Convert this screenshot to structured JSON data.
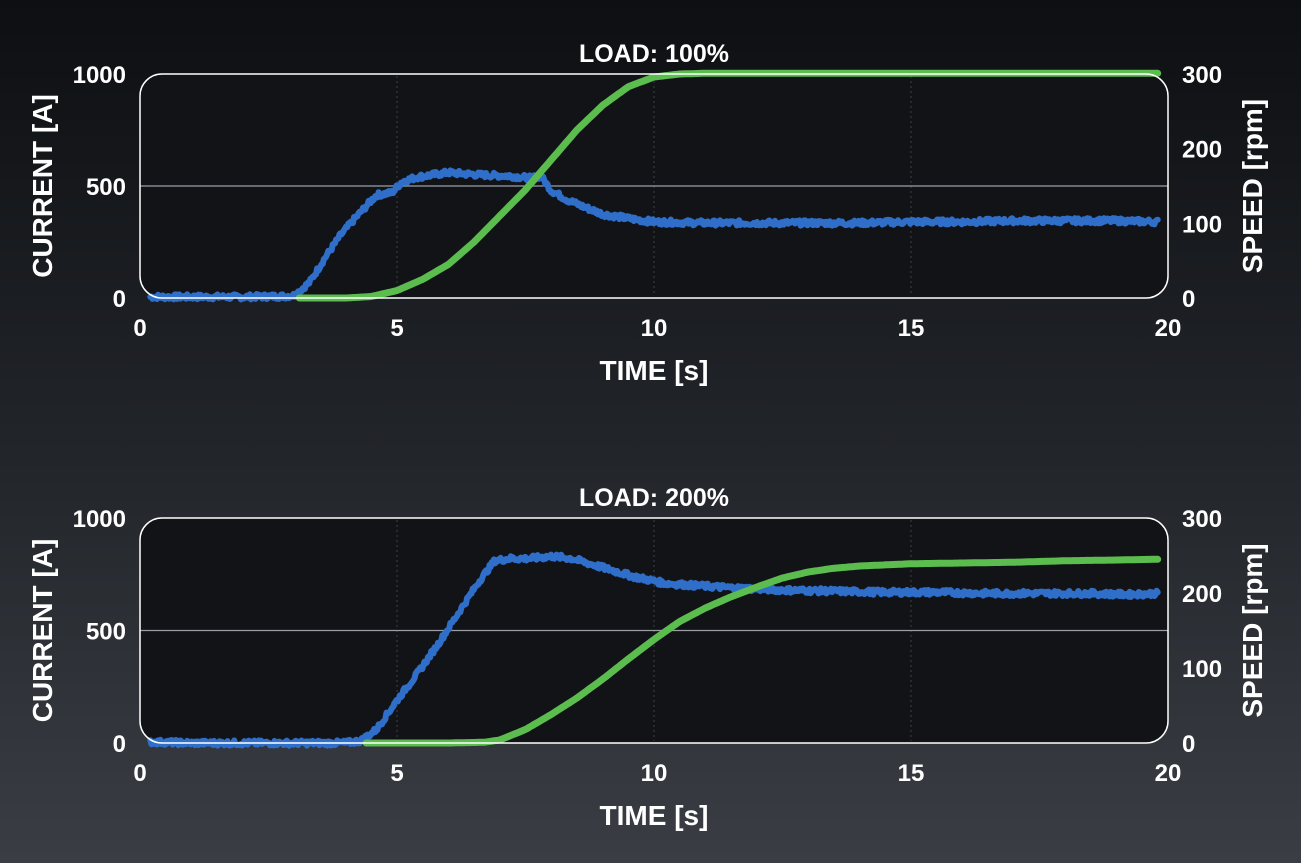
{
  "colors": {
    "current": "#2f6fc9",
    "speed": "#5cbd4f",
    "plot_bg": "#121317",
    "frame": "#ffffff",
    "grid_major": "#9a9ea5",
    "grid_minor": "#3b3f46",
    "text": "#ffffff"
  },
  "chart_data": [
    {
      "type": "line",
      "title": "LOAD: 100%",
      "xlabel": "TIME [s]",
      "ylabel": "CURRENT [A]",
      "y2label": "SPEED [rpm]",
      "xlim": [
        0,
        20
      ],
      "ylim": [
        0,
        1000
      ],
      "y2lim": [
        0,
        300
      ],
      "xticks": [
        "0",
        "5",
        "10",
        "15",
        "20"
      ],
      "yticks": [
        "0",
        "500",
        "1000"
      ],
      "y2ticks": [
        "0",
        "100",
        "200",
        "300"
      ],
      "grid": true,
      "series": [
        {
          "axis": "left",
          "color_key": "current",
          "noise": 12,
          "x": [
            0.2,
            1.0,
            2.0,
            2.8,
            3.0,
            3.3,
            3.6,
            3.9,
            4.2,
            4.6,
            4.9,
            5.1,
            5.4,
            6.0,
            6.6,
            7.2,
            7.6,
            7.8,
            8.0,
            8.3,
            8.6,
            9.0,
            9.5,
            10.0,
            11.0,
            12.0,
            13.0,
            14.0,
            15.0,
            16.0,
            17.0,
            18.0,
            19.0,
            19.8
          ],
          "y": [
            5,
            5,
            5,
            8,
            12,
            70,
            180,
            280,
            360,
            460,
            470,
            520,
            540,
            560,
            550,
            545,
            535,
            545,
            480,
            440,
            410,
            375,
            355,
            340,
            335,
            335,
            335,
            335,
            340,
            340,
            345,
            345,
            345,
            340
          ]
        },
        {
          "axis": "right",
          "color_key": "speed",
          "noise": 0,
          "x": [
            3.1,
            4.0,
            4.5,
            5.0,
            5.5,
            6.0,
            6.5,
            7.0,
            7.5,
            8.0,
            8.5,
            9.0,
            9.5,
            10.0,
            10.5,
            11.0,
            12.0,
            15.0,
            19.8
          ],
          "y": [
            0,
            0,
            2,
            10,
            25,
            45,
            75,
            110,
            145,
            185,
            225,
            258,
            283,
            296,
            300,
            301,
            301,
            301,
            301
          ]
        }
      ]
    },
    {
      "type": "line",
      "title": "LOAD: 200%",
      "xlabel": "TIME [s]",
      "ylabel": "CURRENT [A]",
      "y2label": "SPEED [rpm]",
      "xlim": [
        0,
        20
      ],
      "ylim": [
        0,
        1000
      ],
      "y2lim": [
        0,
        300
      ],
      "xticks": [
        "0",
        "5",
        "10",
        "15",
        "20"
      ],
      "yticks": [
        "0",
        "500",
        "1000"
      ],
      "y2ticks": [
        "0",
        "100",
        "200",
        "300"
      ],
      "grid": true,
      "series": [
        {
          "axis": "left",
          "color_key": "current",
          "noise": 12,
          "x": [
            0.2,
            1.0,
            2.0,
            3.0,
            4.0,
            4.3,
            4.6,
            5.0,
            5.4,
            5.8,
            6.2,
            6.6,
            6.9,
            7.2,
            7.6,
            8.0,
            8.4,
            9.0,
            9.6,
            10.2,
            10.8,
            11.5,
            12.5,
            13.5,
            14.5,
            15.5,
            16.5,
            17.5,
            18.5,
            19.2,
            19.8
          ],
          "y": [
            5,
            0,
            0,
            0,
            0,
            10,
            60,
            190,
            310,
            440,
            580,
            720,
            810,
            820,
            820,
            830,
            820,
            780,
            740,
            710,
            700,
            690,
            680,
            675,
            670,
            670,
            665,
            665,
            665,
            660,
            665
          ]
        },
        {
          "axis": "right",
          "color_key": "speed",
          "noise": 0,
          "x": [
            4.4,
            5.0,
            6.0,
            6.7,
            7.0,
            7.5,
            8.0,
            8.5,
            9.0,
            9.5,
            10.0,
            10.5,
            11.0,
            11.5,
            12.0,
            12.5,
            13.0,
            13.5,
            14.0,
            15.0,
            16.0,
            17.0,
            18.0,
            19.0,
            19.8
          ],
          "y": [
            0,
            0,
            0,
            1,
            4,
            18,
            38,
            60,
            85,
            112,
            138,
            162,
            180,
            195,
            208,
            220,
            228,
            233,
            236,
            239,
            240,
            241,
            243,
            244,
            245
          ]
        }
      ]
    }
  ]
}
